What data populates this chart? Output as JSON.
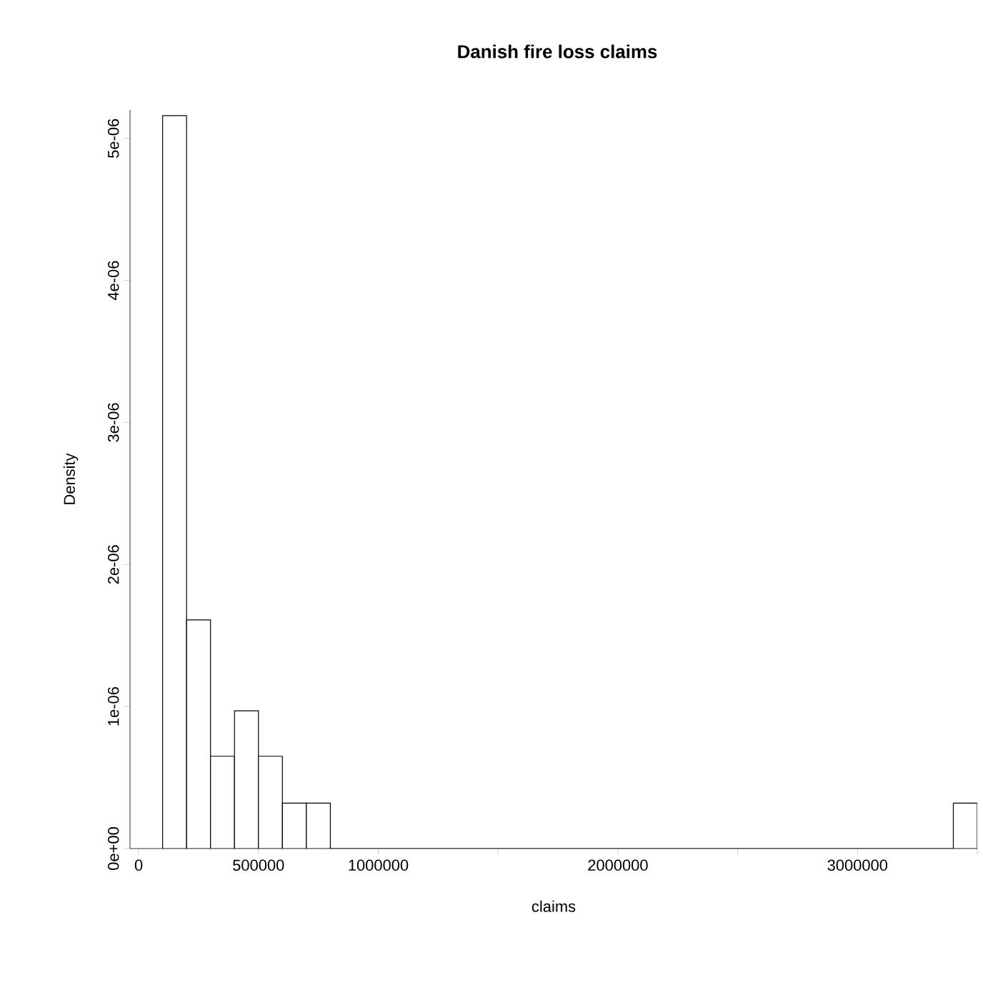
{
  "chart_data": {
    "type": "histogram",
    "title": "Danish fire loss claims",
    "xlabel": "claims",
    "ylabel": "Density",
    "bins": [
      100000,
      200000,
      300000,
      400000,
      500000,
      600000,
      700000,
      800000,
      900000,
      1000000,
      1100000,
      1200000,
      1300000,
      1400000,
      1500000,
      1600000,
      1700000,
      1800000,
      1900000,
      2000000,
      2100000,
      2200000,
      2300000,
      2400000,
      2500000,
      2600000,
      2700000,
      2800000,
      2900000,
      3000000,
      3100000,
      3200000,
      3300000,
      3400000,
      3500000
    ],
    "values": [
      5.16e-06,
      1.61e-06,
      6.5e-07,
      9.7e-07,
      6.5e-07,
      3.2e-07,
      3.2e-07,
      0,
      0,
      0,
      0,
      0,
      0,
      0,
      0,
      0,
      0,
      0,
      0,
      0,
      0,
      0,
      0,
      0,
      0,
      0,
      0,
      0,
      0,
      0,
      0,
      0,
      0,
      3.2e-07
    ],
    "color": "#ffffff",
    "xlim": [
      -36000,
      3500000
    ],
    "ylim": [
      0,
      5.2e-06
    ],
    "xticks": [
      0,
      500000,
      1000000,
      {
        "value": 1500000,
        "label": null
      },
      2000000,
      {
        "value": 2500000,
        "label": null
      },
      3000000,
      {
        "value": 3500000,
        "label": null
      }
    ],
    "yticks": [
      {
        "value": 0,
        "label": "0e+00"
      },
      {
        "value": 1e-06,
        "label": "1e-06"
      },
      {
        "value": 2e-06,
        "label": "2e-06"
      },
      {
        "value": 3e-06,
        "label": "3e-06"
      },
      {
        "value": 4e-06,
        "label": "4e-06"
      },
      {
        "value": 5e-06,
        "label": "5e-06"
      }
    ],
    "grid": false
  }
}
